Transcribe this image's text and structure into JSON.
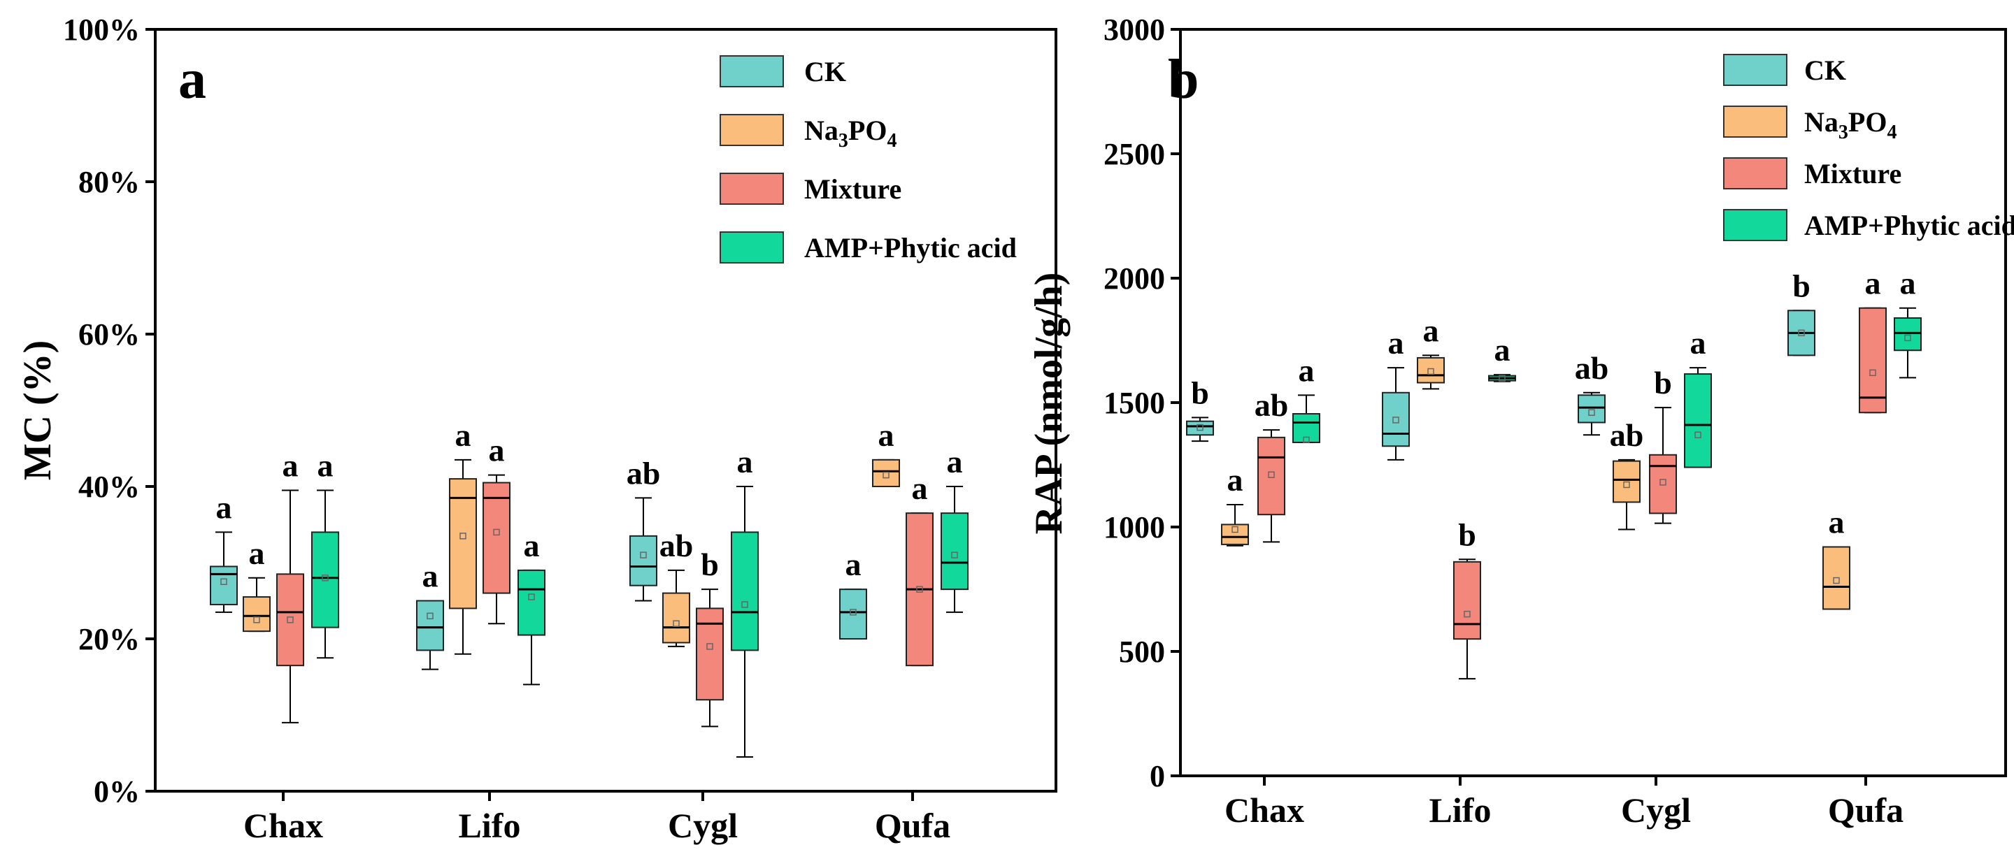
{
  "colors": {
    "CK": "#6fd1c9",
    "Na3PO4": "#fbbd7b",
    "Mixture": "#f4877c",
    "AMP+Phytic acid": "#12d99b"
  },
  "legend": [
    {
      "key": "CK",
      "label": "CK"
    },
    {
      "key": "Na3PO4",
      "label": "Na",
      "sub1": "3",
      "mid": "PO",
      "sub2": "4"
    },
    {
      "key": "Mixture",
      "label": "Mixture"
    },
    {
      "key": "AMP+Phytic acid",
      "label": "AMP+Phytic acid"
    }
  ],
  "chart_data": [
    {
      "type": "box",
      "panel_label": "a",
      "ylabel": "MC (%)",
      "ylim": [
        0,
        100
      ],
      "yticks": [
        0,
        20,
        40,
        60,
        80,
        100
      ],
      "ytick_labels": [
        "0%",
        "20%",
        "40%",
        "60%",
        "80%",
        "100%"
      ],
      "categories": [
        "Chax",
        "Lifo",
        "Cygl",
        "Qufa"
      ],
      "series": [
        {
          "name": "CK",
          "boxes": [
            {
              "min": 23.5,
              "q1": 24.5,
              "median": 28.5,
              "q3": 29.5,
              "max": 34,
              "mean": 27.5,
              "sig": "a"
            },
            {
              "min": 16,
              "q1": 18.5,
              "median": 21.5,
              "q3": 25,
              "max": 25,
              "mean": 23,
              "sig": "a"
            },
            {
              "min": 25,
              "q1": 27,
              "median": 29.5,
              "q3": 33.5,
              "max": 38.5,
              "mean": 31,
              "sig": "ab"
            },
            {
              "min": 20,
              "q1": 20,
              "median": 23.5,
              "q3": 26.5,
              "max": 26.5,
              "mean": 23.5,
              "sig": "a"
            }
          ]
        },
        {
          "name": "Na3PO4",
          "boxes": [
            {
              "min": 21,
              "q1": 21,
              "median": 23,
              "q3": 25.5,
              "max": 28,
              "mean": 22.5,
              "sig": "a"
            },
            {
              "min": 18,
              "q1": 24,
              "median": 38.5,
              "q3": 41,
              "max": 43.5,
              "mean": 33.5,
              "sig": "a"
            },
            {
              "min": 19,
              "q1": 19.5,
              "median": 21.5,
              "q3": 26,
              "max": 29,
              "mean": 22,
              "sig": "ab"
            },
            {
              "min": 40,
              "q1": 40,
              "median": 42,
              "q3": 43.5,
              "max": 43.5,
              "mean": 41.5,
              "sig": "a"
            }
          ]
        },
        {
          "name": "Mixture",
          "boxes": [
            {
              "min": 9,
              "q1": 16.5,
              "median": 23.5,
              "q3": 28.5,
              "max": 39.5,
              "mean": 22.5,
              "sig": "a"
            },
            {
              "min": 22,
              "q1": 26,
              "median": 38.5,
              "q3": 40.5,
              "max": 41.5,
              "mean": 34,
              "sig": "a"
            },
            {
              "min": 8.5,
              "q1": 12,
              "median": 22,
              "q3": 24,
              "max": 26.5,
              "mean": 19,
              "sig": "b"
            },
            {
              "min": 16.5,
              "q1": 16.5,
              "median": 26.5,
              "q3": 36.5,
              "max": 36.5,
              "mean": 26.5,
              "sig": "a"
            }
          ]
        },
        {
          "name": "AMP+Phytic acid",
          "boxes": [
            {
              "min": 17.5,
              "q1": 21.5,
              "median": 28,
              "q3": 34,
              "max": 39.5,
              "mean": 28,
              "sig": "a"
            },
            {
              "min": 14,
              "q1": 20.5,
              "median": 26.5,
              "q3": 29,
              "max": 29,
              "mean": 25.5,
              "sig": "a"
            },
            {
              "min": 4.5,
              "q1": 18.5,
              "median": 23.5,
              "q3": 34,
              "max": 40,
              "mean": 24.5,
              "sig": "a"
            },
            {
              "min": 23.5,
              "q1": 26.5,
              "median": 30,
              "q3": 36.5,
              "max": 40,
              "mean": 31,
              "sig": "a"
            }
          ]
        }
      ]
    },
    {
      "type": "box",
      "panel_label": "b",
      "ylabel": "RAP (nmol/g/h)",
      "ylim": [
        0,
        3000
      ],
      "yticks": [
        0,
        500,
        1000,
        1500,
        2000,
        2500,
        3000
      ],
      "ytick_labels": [
        "0",
        "500",
        "1000",
        "1500",
        "2000",
        "2500",
        "3000"
      ],
      "categories": [
        "Chax",
        "Lifo",
        "Cygl",
        "Qufa"
      ],
      "series": [
        {
          "name": "CK",
          "boxes": [
            {
              "min": 1345,
              "q1": 1370,
              "median": 1405,
              "q3": 1425,
              "max": 1440,
              "mean": 1400,
              "sig": "b"
            },
            {
              "min": 1270,
              "q1": 1325,
              "median": 1375,
              "q3": 1540,
              "max": 1640,
              "mean": 1430,
              "sig": "a"
            },
            {
              "min": 1370,
              "q1": 1420,
              "median": 1480,
              "q3": 1530,
              "max": 1540,
              "mean": 1460,
              "sig": "ab"
            },
            {
              "min": 1690,
              "q1": 1690,
              "median": 1780,
              "q3": 1870,
              "max": 1870,
              "mean": 1780,
              "sig": "b"
            }
          ]
        },
        {
          "name": "Na3PO4",
          "boxes": [
            {
              "min": 925,
              "q1": 930,
              "median": 960,
              "q3": 1010,
              "max": 1090,
              "mean": 990,
              "sig": "a"
            },
            {
              "min": 1555,
              "q1": 1580,
              "median": 1610,
              "q3": 1680,
              "max": 1690,
              "mean": 1625,
              "sig": "a"
            },
            {
              "min": 990,
              "q1": 1100,
              "median": 1190,
              "q3": 1265,
              "max": 1270,
              "mean": 1170,
              "sig": "ab"
            },
            {
              "min": 670,
              "q1": 670,
              "median": 760,
              "q3": 920,
              "max": 920,
              "mean": 785,
              "sig": "a"
            }
          ]
        },
        {
          "name": "Mixture",
          "boxes": [
            {
              "min": 940,
              "q1": 1050,
              "median": 1280,
              "q3": 1360,
              "max": 1390,
              "mean": 1210,
              "sig": "ab"
            },
            {
              "min": 390,
              "q1": 550,
              "median": 610,
              "q3": 860,
              "max": 870,
              "mean": 650,
              "sig": "b"
            },
            {
              "min": 1015,
              "q1": 1055,
              "median": 1245,
              "q3": 1290,
              "max": 1480,
              "mean": 1180,
              "sig": "b"
            },
            {
              "min": 1460,
              "q1": 1460,
              "median": 1520,
              "q3": 1880,
              "max": 1880,
              "mean": 1620,
              "sig": "a"
            }
          ]
        },
        {
          "name": "AMP+Phytic acid",
          "boxes": [
            {
              "min": 1340,
              "q1": 1340,
              "median": 1420,
              "q3": 1455,
              "max": 1530,
              "mean": 1350,
              "sig": "a"
            },
            {
              "min": 1585,
              "q1": 1588,
              "median": 1598,
              "q3": 1608,
              "max": 1612,
              "mean": 1598,
              "sig": "a"
            },
            {
              "min": 1240,
              "q1": 1240,
              "median": 1410,
              "q3": 1615,
              "max": 1640,
              "mean": 1370,
              "sig": "a"
            },
            {
              "min": 1600,
              "q1": 1710,
              "median": 1780,
              "q3": 1840,
              "max": 1880,
              "mean": 1760,
              "sig": "a"
            }
          ]
        }
      ]
    }
  ]
}
